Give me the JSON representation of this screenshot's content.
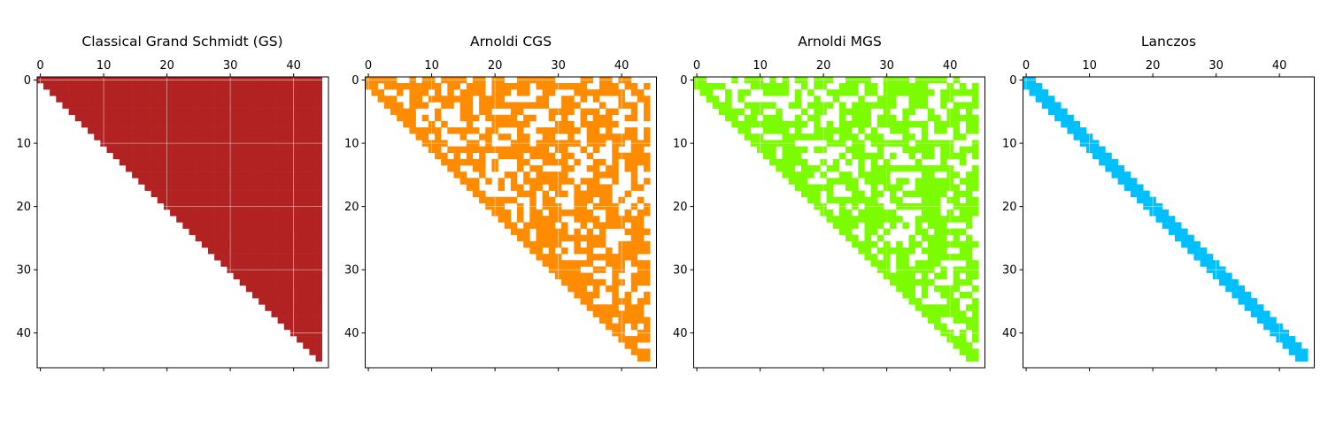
{
  "chart_data": [
    {
      "type": "heatmap",
      "title": "Classical Grand Schmidt (GS)",
      "color": "#b22222",
      "pattern": "upper-triangular",
      "n": 45,
      "xticks": [
        0,
        10,
        20,
        30,
        40
      ],
      "yticks": [
        0,
        10,
        20,
        30,
        40
      ],
      "xlim": [
        -0.5,
        45.5
      ],
      "ylim": [
        45.5,
        -0.5
      ],
      "grid": true
    },
    {
      "type": "heatmap",
      "title": "Arnoldi CGS",
      "color": "#ff8c00",
      "pattern": "sparse upper-Hessenberg",
      "n": 45,
      "density": 0.62,
      "seed": 11,
      "xticks": [
        0,
        10,
        20,
        30,
        40
      ],
      "yticks": [
        0,
        10,
        20,
        30,
        40
      ],
      "xlim": [
        -0.5,
        45.5
      ],
      "ylim": [
        45.5,
        -0.5
      ],
      "grid": true
    },
    {
      "type": "heatmap",
      "title": "Arnoldi MGS",
      "color": "#7cfc00",
      "pattern": "sparse upper-Hessenberg",
      "n": 45,
      "density": 0.62,
      "seed": 29,
      "xticks": [
        0,
        10,
        20,
        30,
        40
      ],
      "yticks": [
        0,
        10,
        20,
        30,
        40
      ],
      "xlim": [
        -0.5,
        45.5
      ],
      "ylim": [
        45.5,
        -0.5
      ],
      "grid": true
    },
    {
      "type": "heatmap",
      "title": "Lanczos",
      "color": "#00bfff",
      "pattern": "tridiagonal",
      "n": 45,
      "xticks": [
        0,
        10,
        20,
        30,
        40
      ],
      "yticks": [
        0,
        10,
        20,
        30,
        40
      ],
      "xlim": [
        -0.5,
        45.5
      ],
      "ylim": [
        45.5,
        -0.5
      ],
      "grid": true
    }
  ]
}
